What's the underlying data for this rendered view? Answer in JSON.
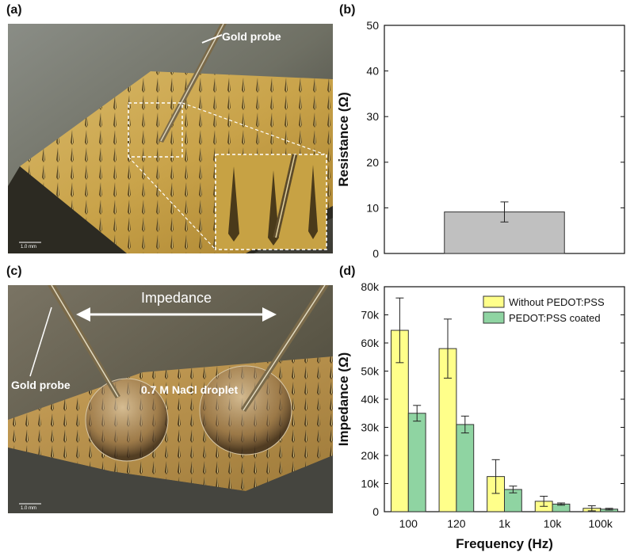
{
  "panels": {
    "a": {
      "label": "(a)",
      "annotation_probe": "Gold probe",
      "scale_bar": "1.0 mm"
    },
    "b": {
      "label": "(b)"
    },
    "c": {
      "label": "(c)",
      "annotation_impedance": "Impedance",
      "annotation_probe": "Gold probe",
      "annotation_droplet": "0.7 M NaCl droplet",
      "scale_bar": "1.0 mm"
    },
    "d": {
      "label": "(d)"
    }
  },
  "chart_data": [
    {
      "type": "bar",
      "panel": "b",
      "title": "",
      "xlabel": "",
      "ylabel": "Resistance (Ω)",
      "ylim": [
        0,
        50
      ],
      "yticks": [
        "0",
        "10",
        "20",
        "30",
        "40",
        "50"
      ],
      "categories": [
        ""
      ],
      "values": [
        9.1
      ],
      "error": [
        2.2
      ],
      "bar_color": "#c0c0c0",
      "grid": false
    },
    {
      "type": "bar",
      "panel": "d",
      "title": "",
      "xlabel": "Frequency (Hz)",
      "ylabel": "Impedance (Ω)",
      "ylim": [
        0,
        80000
      ],
      "yticks": [
        "0",
        "10k",
        "20k",
        "30k",
        "40k",
        "50k",
        "60k",
        "70k",
        "80k"
      ],
      "categories": [
        "100",
        "120",
        "1k",
        "10k",
        "100k"
      ],
      "series": [
        {
          "name": "Without PEDOT:PSS",
          "color": "#ffff8a",
          "values": [
            64500,
            58000,
            12500,
            3700,
            1200
          ],
          "error": [
            11500,
            10500,
            6000,
            1800,
            900
          ]
        },
        {
          "name": "PEDOT:PSS coated",
          "color": "#8fd4a2",
          "values": [
            35000,
            31000,
            7900,
            2700,
            900
          ],
          "error": [
            2800,
            3000,
            1200,
            400,
            300
          ]
        }
      ],
      "legend": "top-right",
      "grid": false
    }
  ]
}
